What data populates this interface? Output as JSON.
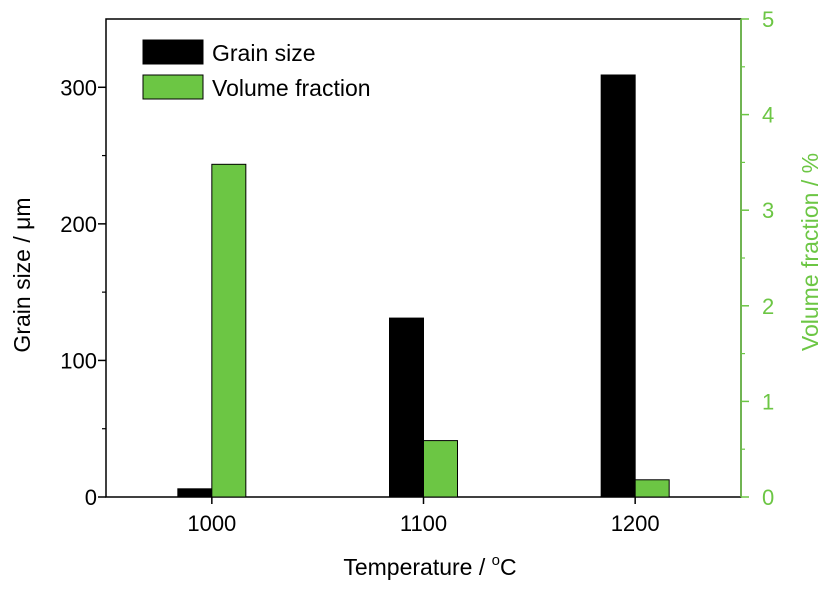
{
  "chart_data": {
    "type": "bar",
    "categories": [
      "1000",
      "1100",
      "1200"
    ],
    "xlabel": "Temperature / °C",
    "xlabel_main": "Temperature / ",
    "xlabel_sup": "o",
    "xlabel_tail": "C",
    "ylabel_left": "Grain size / μm",
    "ylabel_right": "Volume fraction / %",
    "ylim_left": [
      0,
      350
    ],
    "ylim_right": [
      0,
      5
    ],
    "yticks_left": [
      "0",
      "100",
      "200",
      "300"
    ],
    "yticks_right": [
      "0",
      "1",
      "2",
      "3",
      "4",
      "5"
    ],
    "series": [
      {
        "name": "Grain size",
        "axis": "left",
        "color": "#000000",
        "values": [
          6,
          131,
          309
        ]
      },
      {
        "name": "Volume fraction",
        "axis": "right",
        "color": "#6cc644",
        "values": [
          3.48,
          0.59,
          0.18
        ]
      }
    ],
    "legend_position": "top-left",
    "grid": false,
    "colors": {
      "left_axis": "#000000",
      "right_axis": "#6cc644"
    }
  }
}
